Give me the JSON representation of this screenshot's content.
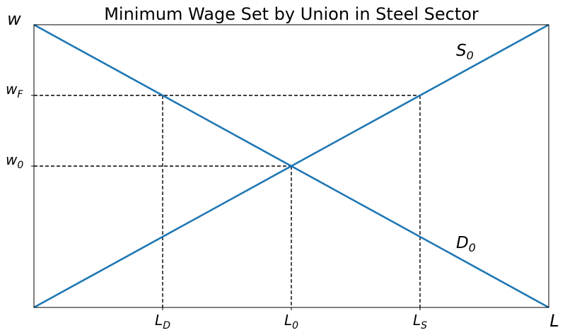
{
  "chart_data": {
    "type": "line",
    "title": "Minimum Wage Set by Union in Steel Sector",
    "xlabel": "L",
    "ylabel": "w",
    "xlim": [
      0,
      4
    ],
    "ylim": [
      0,
      2
    ],
    "grid": false,
    "series": [
      {
        "name": "S",
        "name_sub": "0",
        "x": [
          0,
          4
        ],
        "y": [
          0,
          2
        ],
        "color": "#1f77b4"
      },
      {
        "name": "D",
        "name_sub": "0",
        "x": [
          0,
          4
        ],
        "y": [
          2,
          0
        ],
        "color": "#1f77b4"
      }
    ],
    "x_ticks": [
      {
        "value": 1,
        "main": "L",
        "sub": "D"
      },
      {
        "value": 2,
        "main": "L",
        "sub": "0"
      },
      {
        "value": 3,
        "main": "L",
        "sub": "S"
      }
    ],
    "y_ticks": [
      {
        "value": 1.5,
        "main": "w",
        "sub": "F"
      },
      {
        "value": 1,
        "main": "w",
        "sub": "0"
      }
    ],
    "guides": [
      {
        "from": [
          0,
          1.5
        ],
        "to": [
          3,
          1.5
        ]
      },
      {
        "from": [
          0,
          1
        ],
        "to": [
          2,
          1
        ]
      },
      {
        "from": [
          1,
          1.5
        ],
        "to": [
          1,
          0
        ]
      },
      {
        "from": [
          2,
          1
        ],
        "to": [
          2,
          0
        ]
      },
      {
        "from": [
          3,
          1.5
        ],
        "to": [
          3,
          0
        ]
      }
    ],
    "curve_labels": [
      {
        "series": 0,
        "x": 3.28,
        "y": 1.78
      },
      {
        "series": 1,
        "x": 3.28,
        "y": 0.42
      }
    ]
  }
}
